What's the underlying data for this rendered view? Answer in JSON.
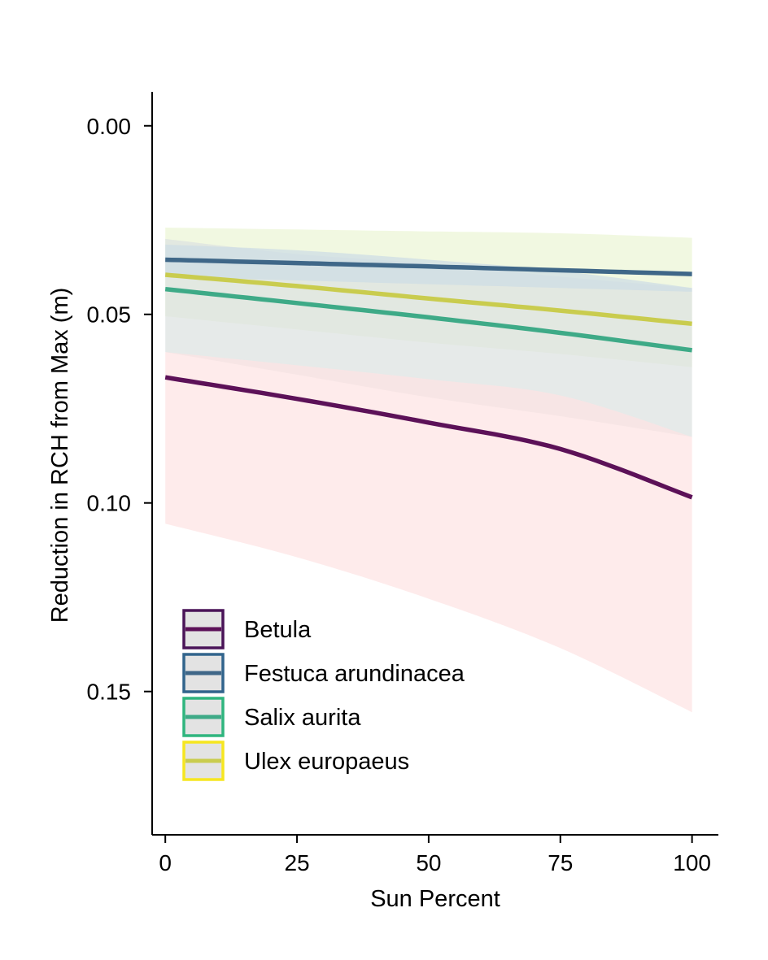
{
  "chart_data": {
    "type": "line",
    "title": "",
    "xlabel": "Sun Percent",
    "ylabel": "Reduction in RCH from Max (m)",
    "x_ticks": [
      0,
      25,
      50,
      75,
      100
    ],
    "y_ticks": [
      0.0,
      0.05,
      0.1,
      0.15
    ],
    "y_tick_labels": [
      "0.00",
      "0.05",
      "0.10",
      "0.15"
    ],
    "xlim": [
      -2.5,
      105
    ],
    "ylim": [
      -0.009,
      0.188
    ],
    "y_reversed": true,
    "grid": false,
    "legend_position": "bottom-left",
    "series": [
      {
        "name": "Betula",
        "color": "#5c1158",
        "fill_color": "#fde3e3",
        "x": [
          0,
          25,
          50,
          75,
          100
        ],
        "y": [
          0.0667,
          0.0724,
          0.0787,
          0.0857,
          0.0985
        ],
        "lower": [
          0.06,
          0.0635,
          0.0672,
          0.0715,
          0.0825
        ],
        "upper": [
          0.1055,
          0.1144,
          0.1254,
          0.1385,
          0.1555
        ]
      },
      {
        "name": "Festuca arundinacea",
        "color": "#3f6788",
        "fill_color": "#cddde4",
        "x": [
          0,
          25,
          50,
          75,
          100
        ],
        "y": [
          0.0355,
          0.0364,
          0.0373,
          0.0383,
          0.0393
        ],
        "lower": [
          0.0315,
          0.033,
          0.0355,
          0.0385,
          0.043
        ],
        "upper": [
          0.04,
          0.041,
          0.042,
          0.043,
          0.044
        ]
      },
      {
        "name": "Salix aurita",
        "color": "#3eaa87",
        "fill_color": "#dde2e0",
        "x": [
          0,
          25,
          50,
          75,
          100
        ],
        "y": [
          0.0433,
          0.047,
          0.0508,
          0.0549,
          0.0595
        ],
        "lower": [
          0.03,
          0.034,
          0.0365,
          0.04,
          0.043
        ],
        "upper": [
          0.06,
          0.066,
          0.072,
          0.077,
          0.0825
        ]
      },
      {
        "name": "Ulex europaeus",
        "color": "#c9cc4e",
        "fill_color": "#ebf5d5",
        "x": [
          0,
          25,
          50,
          75,
          100
        ],
        "y": [
          0.0395,
          0.0425,
          0.0458,
          0.049,
          0.0525
        ],
        "lower": [
          0.027,
          0.0275,
          0.028,
          0.0285,
          0.0297
        ],
        "upper": [
          0.0505,
          0.054,
          0.0575,
          0.0605,
          0.064
        ]
      }
    ],
    "legend_box_fill": "#e3e3e3",
    "legend_box_borders": [
      "#4a1458",
      "#31648c",
      "#2fb57e",
      "#f6e620"
    ]
  }
}
